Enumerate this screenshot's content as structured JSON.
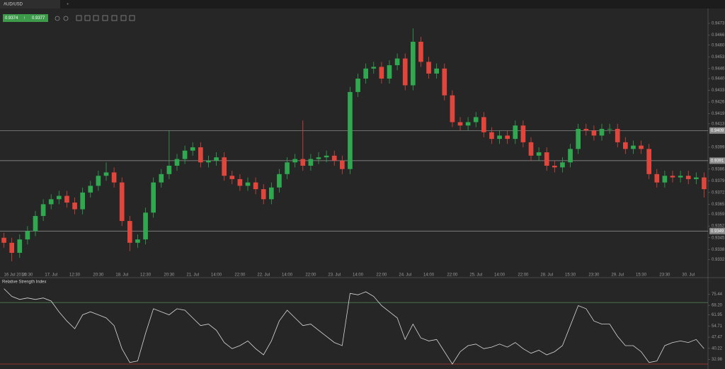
{
  "tab": "AUD/USD",
  "quote": {
    "bid": 0.9374,
    "ask": 0.9377
  },
  "chart_data": [
    {
      "type": "candlestick",
      "categories": [
        "16 Jul 2014",
        null,
        null,
        "20:30",
        null,
        null,
        "17. Jul",
        null,
        null,
        "12:30",
        null,
        null,
        "20:30",
        null,
        null,
        "18. Jul",
        null,
        null,
        "12:30",
        null,
        null,
        "20:30",
        null,
        null,
        "21. Jul",
        null,
        null,
        "14:00",
        null,
        null,
        "22:00",
        null,
        null,
        "22. Jul",
        null,
        null,
        "14:00",
        null,
        null,
        "22:00",
        null,
        null,
        "23. Jul",
        null,
        null,
        "14:00",
        null,
        null,
        "22:00",
        null,
        null,
        "24. Jul",
        null,
        null,
        "14:00",
        null,
        null,
        "22:00",
        null,
        null,
        "25. Jul",
        null,
        null,
        "14:00",
        null,
        null,
        "22:00",
        null,
        null,
        "28. Jul",
        null,
        null,
        "15:30",
        null,
        null,
        "23:30",
        null,
        null,
        "29. Jul",
        null,
        null,
        "15:30",
        null,
        null,
        "23:30",
        null,
        null,
        "30. Jul",
        null,
        null
      ],
      "open": [
        0.9345,
        0.9342,
        0.9336,
        0.9344,
        0.9349,
        0.9358,
        0.9365,
        0.9368,
        0.937,
        0.9366,
        0.9362,
        0.9372,
        0.9376,
        0.9382,
        0.9384,
        0.9378,
        0.9355,
        0.9342,
        0.9344,
        0.936,
        0.9378,
        0.9383,
        0.9388,
        0.9392,
        0.9397,
        0.9399,
        0.939,
        0.9391,
        0.9393,
        0.9382,
        0.938,
        0.9376,
        0.9378,
        0.9374,
        0.9368,
        0.9375,
        0.9383,
        0.939,
        0.9392,
        0.9388,
        0.9392,
        0.9393,
        0.9394,
        0.9391,
        0.9386,
        0.9432,
        0.944,
        0.9446,
        0.9447,
        0.944,
        0.9448,
        0.9452,
        0.9436,
        0.9462,
        0.945,
        0.9443,
        0.9446,
        0.943,
        0.9414,
        0.9412,
        0.9414,
        0.9417,
        0.9408,
        0.9404,
        0.9406,
        0.9404,
        0.9412,
        0.9402,
        0.9394,
        0.9396,
        0.9388,
        0.9387,
        0.939,
        0.9398,
        0.941,
        0.9409,
        0.9406,
        0.941,
        0.941,
        0.9402,
        0.9398,
        0.94,
        0.9398,
        0.9383,
        0.9378,
        0.9382,
        0.9381,
        0.9382,
        0.938,
        0.9381
      ],
      "high": [
        0.9348,
        0.9345,
        0.9347,
        0.9352,
        0.9361,
        0.9368,
        0.9371,
        0.9373,
        0.9373,
        0.9369,
        0.9375,
        0.9379,
        0.9385,
        0.939,
        0.9387,
        0.9381,
        0.9358,
        0.9347,
        0.9363,
        0.9381,
        0.9386,
        0.9409,
        0.9395,
        0.94,
        0.9402,
        0.9402,
        0.9394,
        0.9396,
        0.9396,
        0.9385,
        0.9383,
        0.9381,
        0.9381,
        0.9377,
        0.9378,
        0.9386,
        0.9393,
        0.9395,
        0.9415,
        0.9395,
        0.9396,
        0.9397,
        0.9397,
        0.9394,
        0.9435,
        0.9443,
        0.9449,
        0.945,
        0.945,
        0.9451,
        0.9455,
        0.9455,
        0.947,
        0.9465,
        0.9453,
        0.9449,
        0.9449,
        0.9433,
        0.9417,
        0.9417,
        0.942,
        0.942,
        0.9411,
        0.9409,
        0.9409,
        0.9415,
        0.9415,
        0.9405,
        0.9399,
        0.9399,
        0.9391,
        0.9393,
        0.9401,
        0.9413,
        0.9413,
        0.9412,
        0.9413,
        0.9413,
        0.9413,
        0.9405,
        0.9403,
        0.9403,
        0.9401,
        0.9386,
        0.9385,
        0.9385,
        0.9385,
        0.9385,
        0.9384,
        0.9384
      ],
      "low": [
        0.9339,
        0.9331,
        0.9333,
        0.9341,
        0.9346,
        0.9355,
        0.9362,
        0.9365,
        0.9363,
        0.9359,
        0.9359,
        0.9369,
        0.9373,
        0.9379,
        0.9375,
        0.9352,
        0.9337,
        0.9339,
        0.9341,
        0.9357,
        0.9375,
        0.938,
        0.9385,
        0.9389,
        0.9394,
        0.9387,
        0.9387,
        0.9388,
        0.9379,
        0.9377,
        0.9373,
        0.9373,
        0.9371,
        0.9365,
        0.9365,
        0.9372,
        0.938,
        0.9387,
        0.9385,
        0.9385,
        0.9389,
        0.939,
        0.9388,
        0.9383,
        0.9383,
        0.9429,
        0.9437,
        0.9443,
        0.9437,
        0.9437,
        0.9445,
        0.9433,
        0.9433,
        0.9447,
        0.944,
        0.944,
        0.9427,
        0.9411,
        0.9409,
        0.9409,
        0.9411,
        0.9405,
        0.9401,
        0.9401,
        0.9401,
        0.9401,
        0.9399,
        0.9391,
        0.9391,
        0.9385,
        0.9384,
        0.9384,
        0.9387,
        0.9395,
        0.9406,
        0.9403,
        0.9403,
        0.9407,
        0.9399,
        0.9395,
        0.9395,
        0.9395,
        0.938,
        0.9375,
        0.9375,
        0.9378,
        0.9378,
        0.9377,
        0.9377,
        0.9369
      ],
      "close": [
        0.9342,
        0.9336,
        0.9344,
        0.9349,
        0.9358,
        0.9365,
        0.9368,
        0.937,
        0.9366,
        0.9362,
        0.9372,
        0.9376,
        0.9382,
        0.9384,
        0.9378,
        0.9355,
        0.9342,
        0.9344,
        0.936,
        0.9378,
        0.9383,
        0.9388,
        0.9392,
        0.9397,
        0.9399,
        0.939,
        0.9391,
        0.9393,
        0.9382,
        0.938,
        0.9376,
        0.9378,
        0.9374,
        0.9368,
        0.9375,
        0.9383,
        0.939,
        0.9392,
        0.9388,
        0.9392,
        0.9393,
        0.9394,
        0.9391,
        0.9386,
        0.9432,
        0.944,
        0.9446,
        0.9447,
        0.944,
        0.9448,
        0.9452,
        0.9436,
        0.9462,
        0.945,
        0.9443,
        0.9446,
        0.943,
        0.9414,
        0.9412,
        0.9414,
        0.9417,
        0.9408,
        0.9404,
        0.9406,
        0.9404,
        0.9412,
        0.9402,
        0.9394,
        0.9396,
        0.9388,
        0.9387,
        0.939,
        0.9398,
        0.941,
        0.9409,
        0.9406,
        0.941,
        0.941,
        0.9402,
        0.9398,
        0.94,
        0.9398,
        0.9383,
        0.9378,
        0.9382,
        0.9381,
        0.9382,
        0.938,
        0.9381,
        0.9374
      ],
      "up_color": "#2fa84f",
      "down_color": "#e0463c",
      "ylim": [
        0.9325,
        0.9481
      ],
      "yticks": [
        0.9473,
        0.9466,
        {
          "value": 0.946,
          "label": "0.9460"
        },
        0.9453,
        0.9446,
        {
          "value": 0.944,
          "label": "0.9440"
        },
        0.9433,
        0.9426,
        0.9419,
        0.9413,
        0.9399,
        0.9386,
        0.9379,
        0.9372,
        0.9365,
        0.9359,
        0.9352,
        0.9345,
        0.9338,
        0.9332
      ],
      "levels": [
        0.9409,
        0.9391,
        0.9349
      ]
    },
    {
      "type": "line",
      "title": "Relative Strength Index",
      "values": [
        79,
        74,
        72,
        73,
        72,
        73,
        71,
        64,
        58,
        53,
        62,
        64,
        62,
        60,
        55,
        40,
        31,
        32,
        50,
        66,
        64,
        62,
        66,
        65,
        60,
        55,
        56,
        52,
        44,
        40,
        42,
        45,
        40,
        36,
        45,
        58,
        65,
        60,
        55,
        56,
        52,
        48,
        44,
        42,
        76,
        75,
        77,
        74,
        68,
        64,
        60,
        46,
        56,
        47,
        45,
        46,
        38,
        30,
        38,
        42,
        43,
        40,
        41,
        43,
        41,
        44,
        40,
        37,
        39,
        36,
        38,
        42,
        55,
        68,
        66,
        58,
        56,
        56,
        48,
        42,
        42,
        38,
        31,
        32,
        42,
        44,
        45,
        44,
        46,
        40
      ],
      "color": "#d8d8d8",
      "ylim": [
        27.7,
        81.6
      ],
      "yticks": [
        75.44,
        {
          "value": 68.2,
          "label": "68.20"
        },
        61.95,
        54.71,
        47.47,
        40.22,
        32.98
      ],
      "levels": [
        70,
        30
      ],
      "level_colors": [
        "#4f7a55",
        "#b03a30"
      ]
    }
  ]
}
